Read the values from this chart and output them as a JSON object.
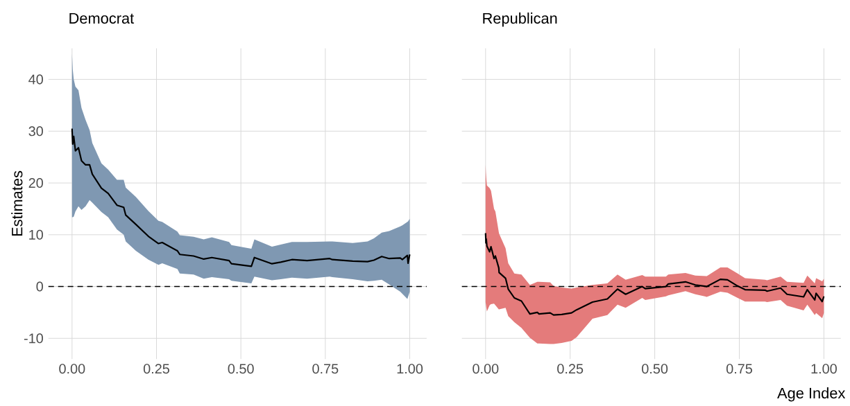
{
  "chart_data": [
    {
      "type": "line",
      "title": "Democrat",
      "ylabel": "Estimates",
      "xlim": [
        -0.07,
        1.05
      ],
      "ylim": [
        -14,
        46
      ],
      "xticks": [
        {
          "value": 0,
          "label": "0.00"
        },
        {
          "value": 0.25,
          "label": "0.25"
        },
        {
          "value": 0.5,
          "label": "0.50"
        },
        {
          "value": 0.75,
          "label": "0.75"
        },
        {
          "value": 1,
          "label": "1.00"
        }
      ],
      "yticks": [
        -10,
        0,
        10,
        20,
        30,
        40
      ],
      "grid": true,
      "ref_lines": [
        {
          "axis": "y",
          "value": 0,
          "color": "#000000",
          "line_style": "dashed"
        }
      ],
      "x": [
        0,
        0.002,
        0.005,
        0.01,
        0.019,
        0.028,
        0.04,
        0.052,
        0.06,
        0.087,
        0.107,
        0.133,
        0.153,
        0.159,
        0.189,
        0.226,
        0.256,
        0.267,
        0.312,
        0.319,
        0.36,
        0.39,
        0.414,
        0.465,
        0.472,
        0.531,
        0.54,
        0.592,
        0.618,
        0.651,
        0.696,
        0.763,
        0.771,
        0.831,
        0.875,
        0.894,
        0.917,
        0.939,
        0.972,
        0.978,
        0.993,
        0.995,
        1.0
      ],
      "series": [
        {
          "color": "#000000",
          "values": [
            30.5,
            27.5,
            29,
            26.2,
            26.8,
            24.3,
            23.5,
            23.5,
            21.7,
            19.0,
            18.0,
            15.7,
            15.3,
            13.8,
            12.0,
            9.7,
            8.3,
            8.5,
            6.9,
            6.2,
            5.9,
            5.3,
            5.6,
            5.0,
            4.4,
            3.9,
            5.6,
            4.4,
            4.7,
            5.2,
            5.0,
            5.4,
            5.2,
            4.9,
            4.8,
            5.1,
            5.8,
            5.4,
            5.5,
            5.2,
            6.0,
            4.5,
            6.2
          ],
          "lower": [
            13.4,
            13.4,
            13.5,
            14.5,
            15.5,
            14.8,
            15.5,
            16.7,
            16.2,
            14.4,
            13.4,
            11.0,
            10.0,
            8.7,
            6.9,
            5.2,
            4.2,
            4.5,
            3.4,
            2.5,
            2.3,
            1.5,
            1.8,
            1.4,
            1.1,
            0.6,
            1.9,
            1.2,
            1.4,
            1.7,
            1.5,
            1.9,
            1.8,
            1.4,
            1.0,
            1.1,
            1.3,
            0.4,
            -1.0,
            -1.4,
            -2.4,
            -2.0,
            -1.0
          ],
          "upper": [
            44.9,
            42,
            40,
            38.6,
            37.9,
            34.5,
            32.2,
            30.2,
            27.7,
            23.8,
            22.6,
            20.6,
            20.6,
            19.1,
            17.3,
            14.6,
            12.7,
            12.5,
            10.6,
            9.9,
            9.6,
            9.1,
            9.5,
            8.6,
            8.0,
            7.3,
            9.1,
            7.7,
            8.1,
            8.6,
            8.6,
            8.7,
            8.7,
            8.4,
            8.7,
            9.3,
            10.4,
            10.7,
            11.6,
            11.8,
            12.5,
            12.6,
            13.1
          ]
        }
      ]
    },
    {
      "type": "line",
      "title": "Republican",
      "xlabel": "Age Index",
      "xlim": [
        -0.07,
        1.05
      ],
      "ylim": [
        -14,
        46
      ],
      "xticks": [
        {
          "value": 0,
          "label": "0.00"
        },
        {
          "value": 0.25,
          "label": "0.25"
        },
        {
          "value": 0.5,
          "label": "0.50"
        },
        {
          "value": 0.75,
          "label": "0.75"
        },
        {
          "value": 1,
          "label": "1.00"
        }
      ],
      "yticks": [
        -10,
        0,
        10,
        20,
        30,
        40
      ],
      "grid": true,
      "tick_labels": "x",
      "ref_lines": [
        {
          "axis": "y",
          "value": 0,
          "color": "#000000",
          "line_style": "dashed"
        }
      ],
      "x": [
        0,
        0.001,
        0.002,
        0.004,
        0.012,
        0.016,
        0.025,
        0.029,
        0.039,
        0.04,
        0.059,
        0.067,
        0.085,
        0.106,
        0.131,
        0.153,
        0.158,
        0.191,
        0.201,
        0.225,
        0.254,
        0.269,
        0.316,
        0.36,
        0.39,
        0.414,
        0.463,
        0.472,
        0.533,
        0.54,
        0.591,
        0.62,
        0.654,
        0.694,
        0.715,
        0.745,
        0.767,
        0.826,
        0.832,
        0.872,
        0.891,
        0.94,
        0.951,
        0.973,
        0.977,
        0.995,
        1.0
      ],
      "series": [
        {
          "color": "#000000",
          "values": [
            10.3,
            8.4,
            9.2,
            7.8,
            6.7,
            7.7,
            5.4,
            5.9,
            3.6,
            2.7,
            1.6,
            -0.5,
            -2.2,
            -2.8,
            -5.3,
            -5.0,
            -5.3,
            -5.1,
            -5.5,
            -5.4,
            -5.1,
            -4.5,
            -3.0,
            -2.4,
            -0.5,
            -1.5,
            0.0,
            -0.4,
            0.0,
            0.5,
            0.9,
            0.3,
            0.0,
            1.4,
            1.3,
            0.1,
            -0.6,
            -0.7,
            -0.9,
            -0.3,
            -1.5,
            -2.0,
            -0.6,
            -2.6,
            -1.3,
            -2.9,
            -1.9
          ],
          "lower": [
            -3.0,
            -3.5,
            -4.0,
            -4.8,
            -3.6,
            -3.4,
            -3.3,
            -3.6,
            -4.4,
            -4.4,
            -4.1,
            -5.7,
            -6.9,
            -8.0,
            -9.9,
            -11.0,
            -11.0,
            -11.1,
            -11.1,
            -10.9,
            -10.5,
            -9.8,
            -6.2,
            -5.5,
            -3.5,
            -4.1,
            -2.2,
            -2.6,
            -1.9,
            -1.7,
            -0.9,
            -1.5,
            -2.0,
            -1.0,
            -1.2,
            -2.2,
            -2.9,
            -2.9,
            -3.0,
            -2.6,
            -3.7,
            -4.6,
            -3.5,
            -5.5,
            -5.1,
            -6.1,
            -5.1
          ],
          "upper": [
            23.5,
            22.0,
            21.0,
            19.5,
            19.0,
            18.5,
            15.0,
            14.5,
            10.5,
            10.2,
            7.4,
            4.5,
            2.5,
            2.3,
            0.3,
            0.9,
            0.9,
            0.8,
            0.1,
            -0.2,
            -0.4,
            -0.2,
            0.3,
            0.6,
            2.3,
            1.3,
            2.2,
            1.9,
            1.9,
            2.3,
            2.6,
            2.1,
            2.0,
            3.7,
            3.7,
            2.5,
            1.6,
            1.3,
            1.2,
            1.9,
            0.9,
            0.7,
            2.1,
            0.6,
            1.6,
            1.0,
            1.5
          ]
        }
      ]
    }
  ]
}
